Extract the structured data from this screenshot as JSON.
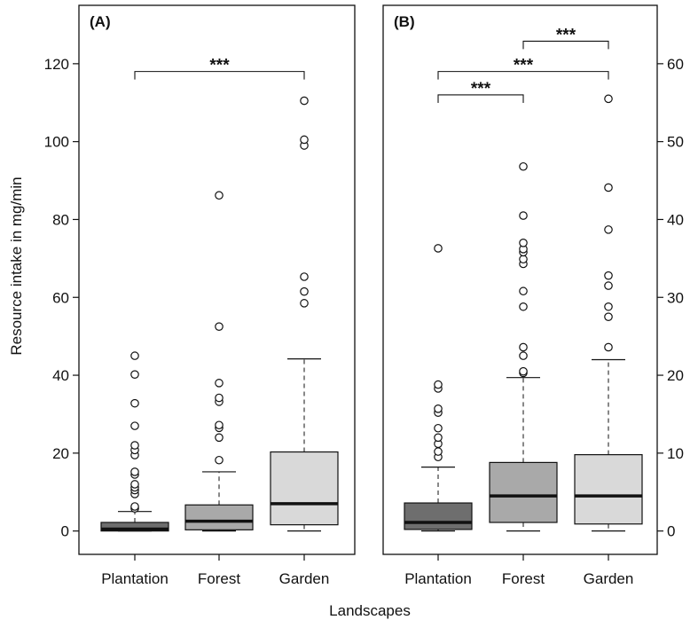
{
  "chart_data": {
    "type": "boxplot",
    "xlabel": "Landscapes",
    "ylabel": "Resource intake in mg/min",
    "categories": [
      "Plantation",
      "Forest",
      "Garden"
    ],
    "colors": {
      "Plantation": "#6e6e6e",
      "Forest": "#a9a9a9",
      "Garden": "#d9d9d9",
      "median": "#111111"
    },
    "panels": [
      {
        "label": "(A)",
        "yaxis_side": "left",
        "ylim": [
          -6,
          135
        ],
        "yticks": [
          0,
          20,
          40,
          60,
          80,
          100,
          120
        ],
        "boxes": [
          {
            "category": "Plantation",
            "whisker_low": 0,
            "q1": 0,
            "median": 0.5,
            "q3": 2.2,
            "whisker_high": 5,
            "outliers": [
              5.8,
              6.3,
              9.5,
              10.5,
              11.2,
              12.0,
              14.5,
              15.2,
              19.5,
              20.8,
              22.0,
              27.0,
              32.8,
              40.2,
              45.0
            ]
          },
          {
            "category": "Forest",
            "whisker_low": 0,
            "q1": 0.3,
            "median": 2.5,
            "q3": 6.7,
            "whisker_high": 15.2,
            "outliers": [
              18.2,
              24.0,
              26.5,
              27.2,
              33.2,
              34.2,
              38.0,
              52.5,
              86.2
            ]
          },
          {
            "category": "Garden",
            "whisker_low": 0,
            "q1": 1.6,
            "median": 7.0,
            "q3": 20.3,
            "whisker_high": 44.2,
            "outliers": [
              58.5,
              61.5,
              65.3,
              99.0,
              100.5,
              110.5
            ]
          }
        ],
        "significance": [
          {
            "from": "Plantation",
            "to": "Garden",
            "level": 118,
            "label": "***"
          }
        ]
      },
      {
        "label": "(B)",
        "yaxis_side": "right",
        "ylim": [
          -3,
          67.5
        ],
        "yticks": [
          0,
          10,
          20,
          30,
          40,
          50,
          60
        ],
        "boxes": [
          {
            "category": "Plantation",
            "whisker_low": 0,
            "q1": 0.2,
            "median": 1.1,
            "q3": 3.6,
            "whisker_high": 8.2,
            "outliers": [
              9.5,
              10.2,
              11.2,
              12.0,
              13.2,
              15.2,
              15.7,
              18.3,
              18.8,
              36.3
            ]
          },
          {
            "category": "Forest",
            "whisker_low": 0,
            "q1": 1.1,
            "median": 4.5,
            "q3": 8.8,
            "whisker_high": 19.7,
            "outliers": [
              20.3,
              20.5,
              22.5,
              23.6,
              28.8,
              30.8,
              34.3,
              34.9,
              35.8,
              36.2,
              37.0,
              40.5,
              46.8
            ]
          },
          {
            "category": "Garden",
            "whisker_low": 0,
            "q1": 0.9,
            "median": 4.5,
            "q3": 9.8,
            "whisker_high": 22.0,
            "outliers": [
              23.6,
              27.5,
              28.8,
              31.5,
              32.8,
              38.7,
              44.1,
              55.5
            ]
          }
        ],
        "significance": [
          {
            "from": "Forest",
            "to": "Garden",
            "level": 62.9,
            "label": "***"
          },
          {
            "from": "Plantation",
            "to": "Garden",
            "level": 59.0,
            "label": "***"
          },
          {
            "from": "Plantation",
            "to": "Forest",
            "level": 56.0,
            "label": "***"
          }
        ]
      }
    ]
  }
}
